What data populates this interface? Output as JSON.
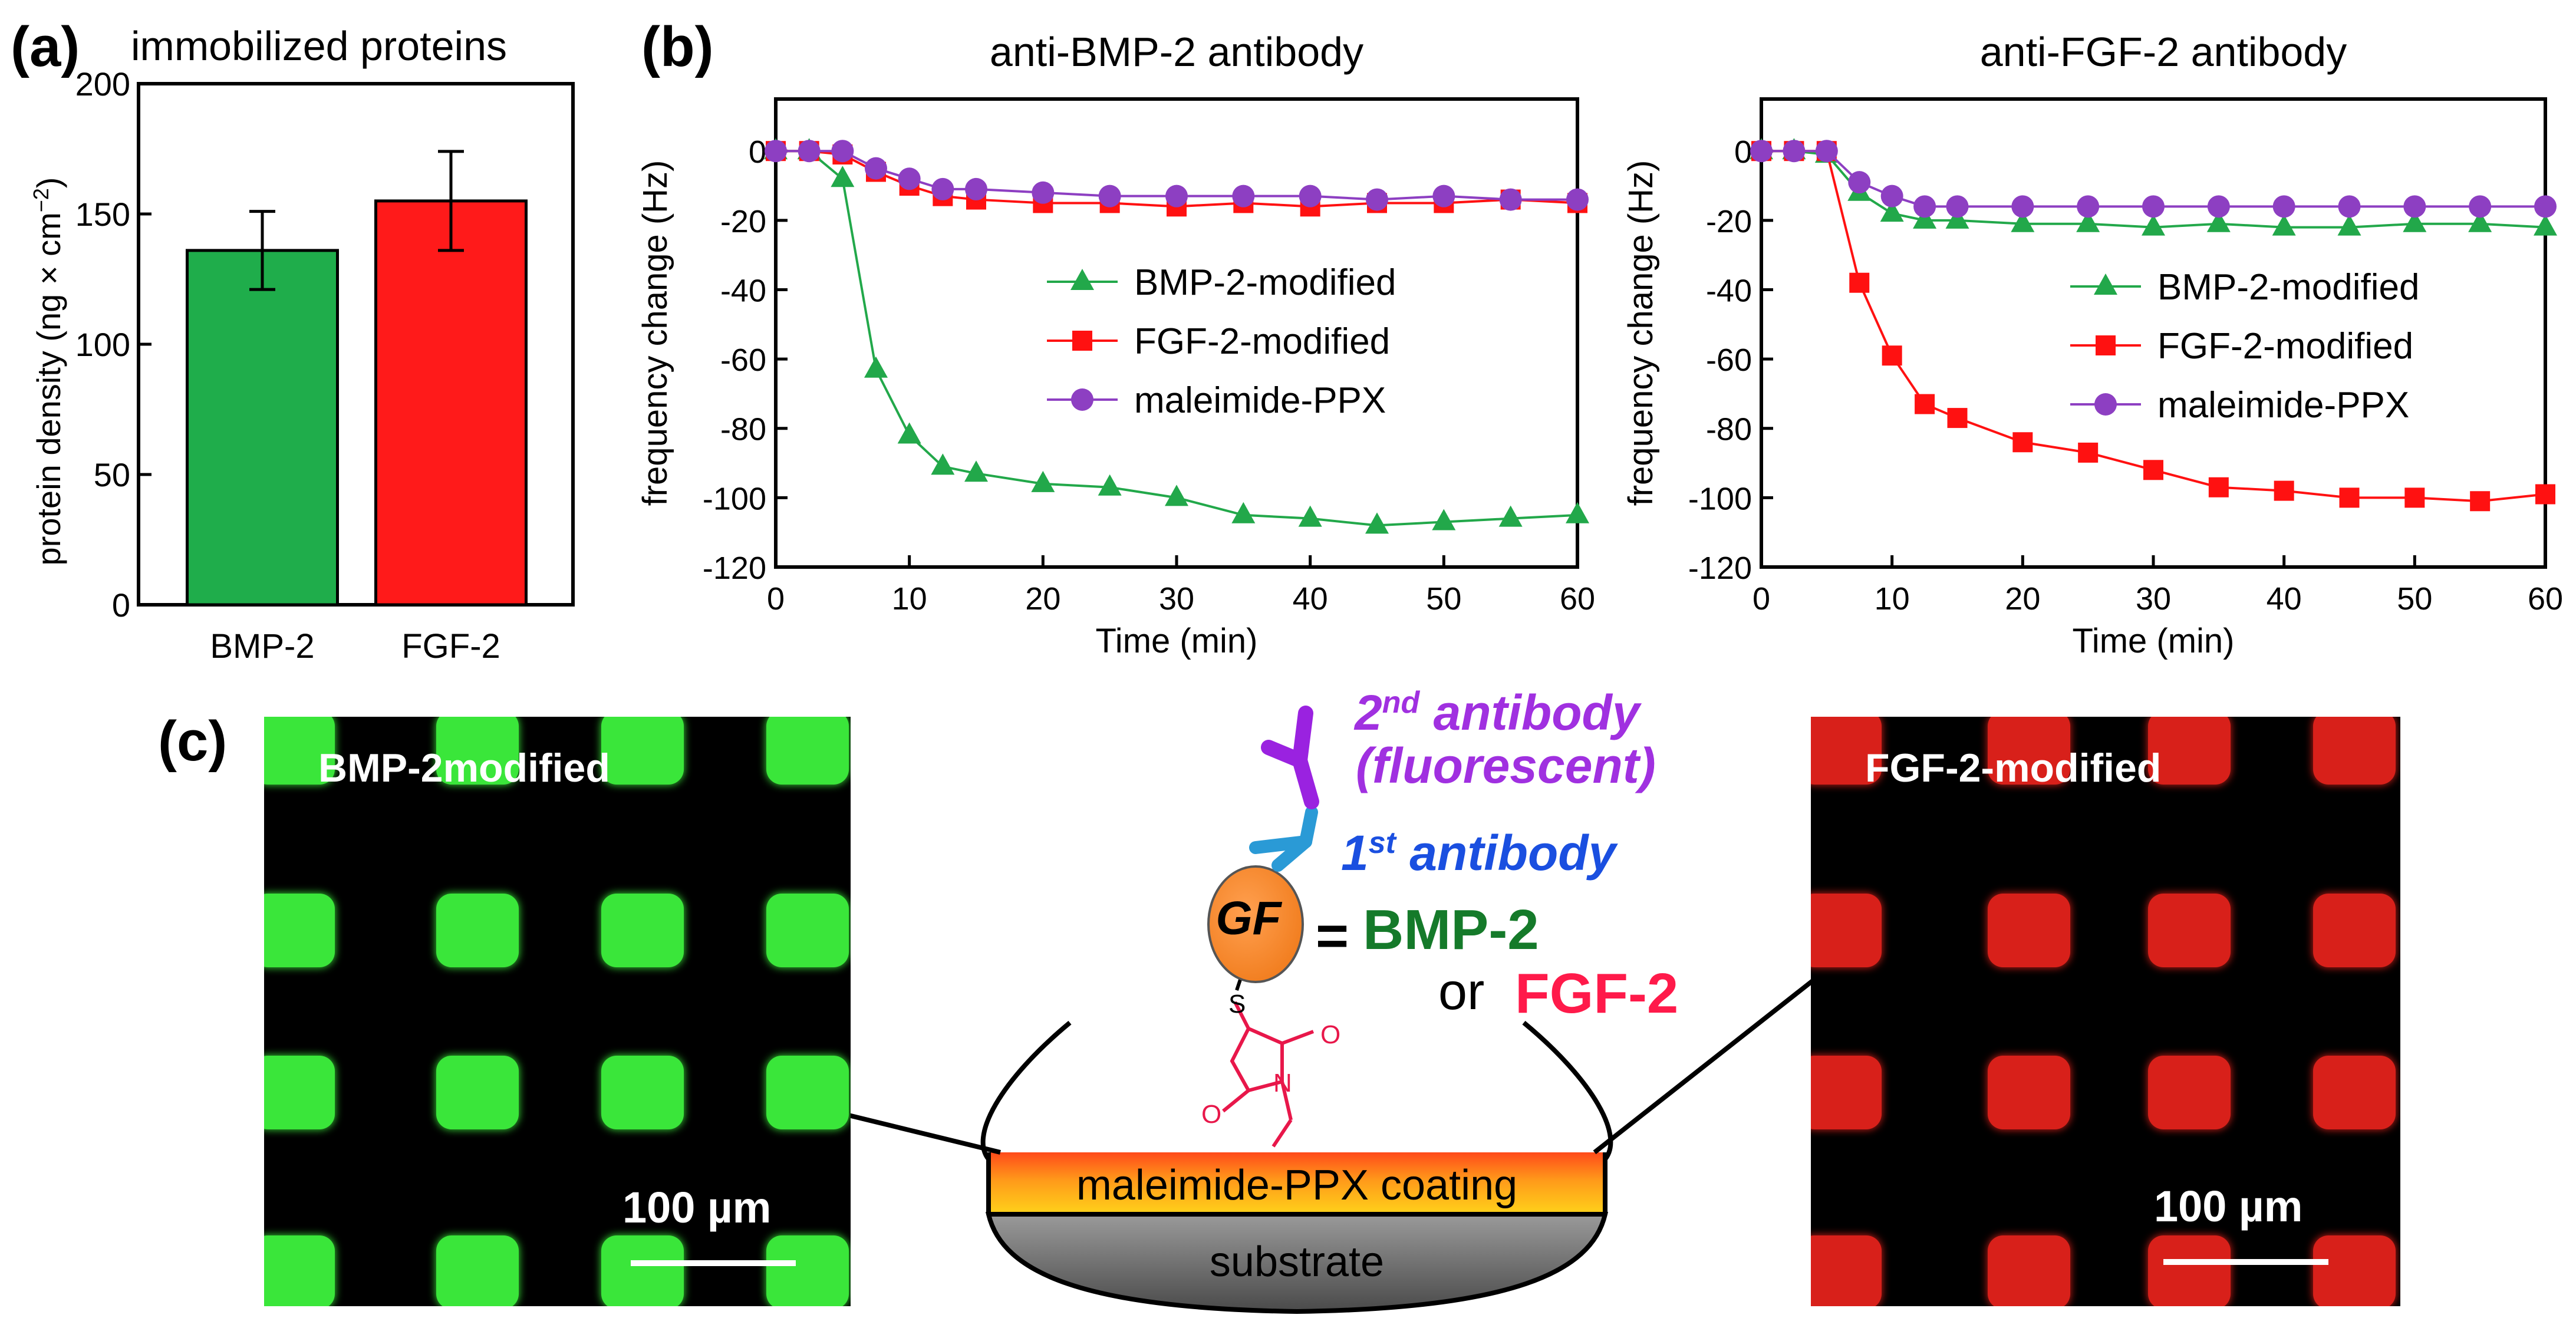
{
  "panel_labels": {
    "a": "(a)",
    "b": "(b)",
    "c": "(c)"
  },
  "colors": {
    "green": "#22a84a",
    "red": "#ff1111",
    "purple": "#8d3fc2",
    "bar_green": "#1fad4b",
    "bar_red": "#ff1a1a"
  },
  "chart_data": [
    {
      "type": "bar",
      "title": "immobilized proteins",
      "ylabel_main": "protein density (ng × cm",
      "ylabel_sup": "−2",
      "ylabel_end": ")",
      "categories": [
        "BMP-2",
        "FGF-2"
      ],
      "values": [
        136,
        155
      ],
      "errors": [
        15,
        19
      ],
      "ylim": [
        0,
        200
      ],
      "yticks": [
        "0",
        "50",
        "100",
        "150",
        "200"
      ]
    },
    {
      "type": "line",
      "title": "anti-BMP-2 antibody",
      "xlabel": "Time (min)",
      "ylabel": "frequency change (Hz)",
      "xlim": [
        0,
        60
      ],
      "ylim": [
        -120,
        15
      ],
      "xticks": [
        "0",
        "10",
        "20",
        "30",
        "40",
        "50",
        "60"
      ],
      "yticks": [
        "0",
        "-20",
        "-40",
        "-60",
        "-80",
        "-100",
        "-120"
      ],
      "series": [
        {
          "name": "BMP-2-modified",
          "marker": "triangle",
          "x": [
            0,
            2.5,
            5,
            7.5,
            10,
            12.5,
            15,
            20,
            25,
            30,
            35,
            40,
            45,
            50,
            55,
            60
          ],
          "y": [
            0,
            0,
            -8,
            -63,
            -82,
            -91,
            -93,
            -96,
            -97,
            -100,
            -105,
            -106,
            -108,
            -107,
            -106,
            -105
          ]
        },
        {
          "name": "FGF-2-modified",
          "marker": "square",
          "x": [
            0,
            2.5,
            5,
            7.5,
            10,
            12.5,
            15,
            20,
            25,
            30,
            35,
            40,
            45,
            50,
            55,
            60
          ],
          "y": [
            0,
            0,
            -1,
            -6,
            -10,
            -13,
            -14,
            -15,
            -15,
            -16,
            -15,
            -16,
            -15,
            -15,
            -14,
            -15
          ]
        },
        {
          "name": "maleimide-PPX",
          "marker": "circle",
          "x": [
            0,
            2.5,
            5,
            7.5,
            10,
            12.5,
            15,
            20,
            25,
            30,
            35,
            40,
            45,
            50,
            55,
            60
          ],
          "y": [
            0,
            0,
            0,
            -5,
            -8,
            -11,
            -11,
            -12,
            -13,
            -13,
            -13,
            -13,
            -14,
            -13,
            -14,
            -14
          ]
        }
      ]
    },
    {
      "type": "line",
      "title": "anti-FGF-2 antibody",
      "xlabel": "Time (min)",
      "ylabel": "frequency change (Hz)",
      "xlim": [
        0,
        60
      ],
      "ylim": [
        -120,
        15
      ],
      "xticks": [
        "0",
        "10",
        "20",
        "30",
        "40",
        "50",
        "60"
      ],
      "yticks": [
        "0",
        "-20",
        "-40",
        "-60",
        "-80",
        "-100",
        "-120"
      ],
      "series": [
        {
          "name": "BMP-2-modified",
          "marker": "triangle",
          "x": [
            0,
            2.5,
            5,
            7.5,
            10,
            12.5,
            15,
            20,
            25,
            30,
            35,
            40,
            45,
            50,
            55,
            60
          ],
          "y": [
            0,
            0,
            -1,
            -12,
            -18,
            -20,
            -20,
            -21,
            -21,
            -22,
            -21,
            -22,
            -22,
            -21,
            -21,
            -22
          ]
        },
        {
          "name": "FGF-2-modified",
          "marker": "square",
          "x": [
            0,
            2.5,
            5,
            7.5,
            10,
            12.5,
            15,
            20,
            25,
            30,
            35,
            40,
            45,
            50,
            55,
            60
          ],
          "y": [
            0,
            0,
            0,
            -38,
            -59,
            -73,
            -77,
            -84,
            -87,
            -92,
            -97,
            -98,
            -100,
            -100,
            -101,
            -99
          ]
        },
        {
          "name": "maleimide-PPX",
          "marker": "circle",
          "x": [
            0,
            2.5,
            5,
            7.5,
            10,
            12.5,
            15,
            20,
            25,
            30,
            35,
            40,
            45,
            50,
            55,
            60
          ],
          "y": [
            0,
            0,
            0,
            -9,
            -13,
            -16,
            -16,
            -16,
            -16,
            -16,
            -16,
            -16,
            -16,
            -16,
            -16,
            -16
          ]
        }
      ]
    }
  ],
  "images": {
    "left_label": "BMP-2modified",
    "right_label": "FGF-2-modified",
    "scale_label": "100 µm"
  },
  "diagram": {
    "second_antibody": "2",
    "second_sup": "nd",
    "second_word": " antibody",
    "fluorescent": "(fluorescent)",
    "first_antibody": "1",
    "first_sup": "st",
    "first_word": " antibody",
    "gf": "GF",
    "equals": "=",
    "bmp": "BMP-2",
    "or": "or",
    "fgf": "FGF-2",
    "s_atom": "S",
    "n_atom": "N",
    "o_atom_1": "O",
    "o_atom_2": "O",
    "coating": "maleimide-PPX coating",
    "substrate": "substrate"
  }
}
